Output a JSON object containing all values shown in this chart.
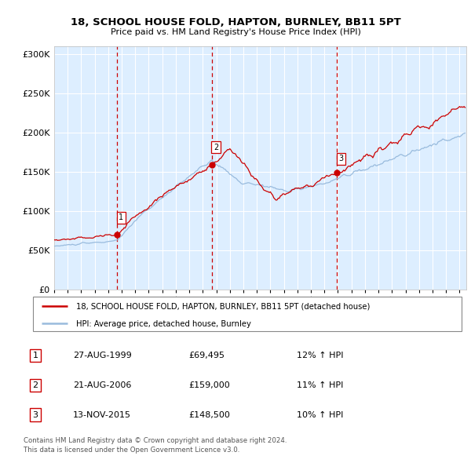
{
  "title": "18, SCHOOL HOUSE FOLD, HAPTON, BURNLEY, BB11 5PT",
  "subtitle": "Price paid vs. HM Land Registry's House Price Index (HPI)",
  "sale_prices": [
    69495,
    159000,
    148500
  ],
  "sale_labels": [
    "1",
    "2",
    "3"
  ],
  "sale_pct": [
    "12%",
    "11%",
    "10%"
  ],
  "sale_date_labels": [
    "27-AUG-1999",
    "21-AUG-2006",
    "13-NOV-2015"
  ],
  "sale_price_labels": [
    "£69,495",
    "£159,000",
    "£148,500"
  ],
  "sale_year_floats": [
    1999.667,
    2006.667,
    2015.917
  ],
  "legend_line1": "18, SCHOOL HOUSE FOLD, HAPTON, BURNLEY, BB11 5PT (detached house)",
  "legend_line2": "HPI: Average price, detached house, Burnley",
  "footer1": "Contains HM Land Registry data © Crown copyright and database right 2024.",
  "footer2": "This data is licensed under the Open Government Licence v3.0.",
  "red_color": "#cc0000",
  "blue_color": "#99bbdd",
  "plot_bg": "#ddeeff",
  "ylim": [
    0,
    310000
  ],
  "xlim_start": 1995.0,
  "xlim_end": 2025.5
}
